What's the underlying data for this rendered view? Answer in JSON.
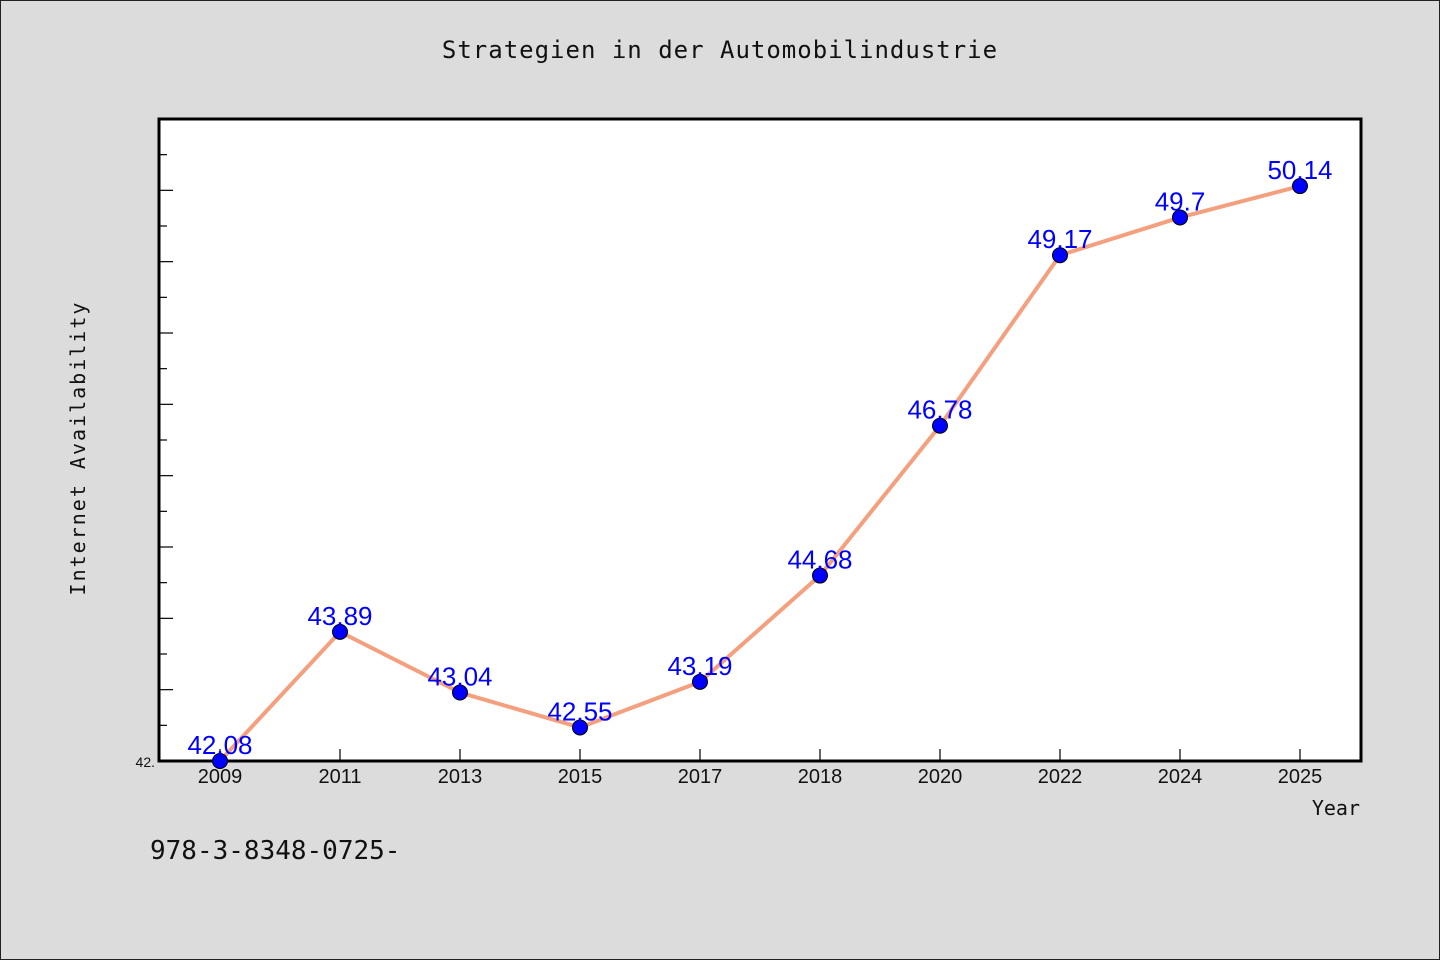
{
  "chart_data": {
    "type": "line",
    "title": "Strategien in der Automobilindustrie",
    "xlabel": "Year",
    "ylabel": "Internet Availability",
    "categories": [
      "2009",
      "2011",
      "2013",
      "2015",
      "2017",
      "2018",
      "2020",
      "2022",
      "2024",
      "2025"
    ],
    "series": [
      {
        "values": [
          42.08,
          43.89,
          43.04,
          42.55,
          43.19,
          44.68,
          46.78,
          49.17,
          49.7,
          50.14
        ],
        "labels": [
          "42.08",
          "43.89",
          "43.04",
          "42.55",
          "43.19",
          "44.68",
          "46.78",
          "49.17",
          "49.7",
          "50.14"
        ],
        "line_color": "#f4a07e",
        "marker_color": "#0000ff",
        "label_color": "#0000ff"
      }
    ],
    "y_min_label": "42.",
    "ylim": [
      42.08,
      51.08
    ],
    "grid": false,
    "legend": "none"
  },
  "footer_text": "978-3-8348-0725-",
  "colors": {
    "background": "#dcdcdc",
    "plot_background": "#ffffff",
    "axes": "#000000"
  }
}
